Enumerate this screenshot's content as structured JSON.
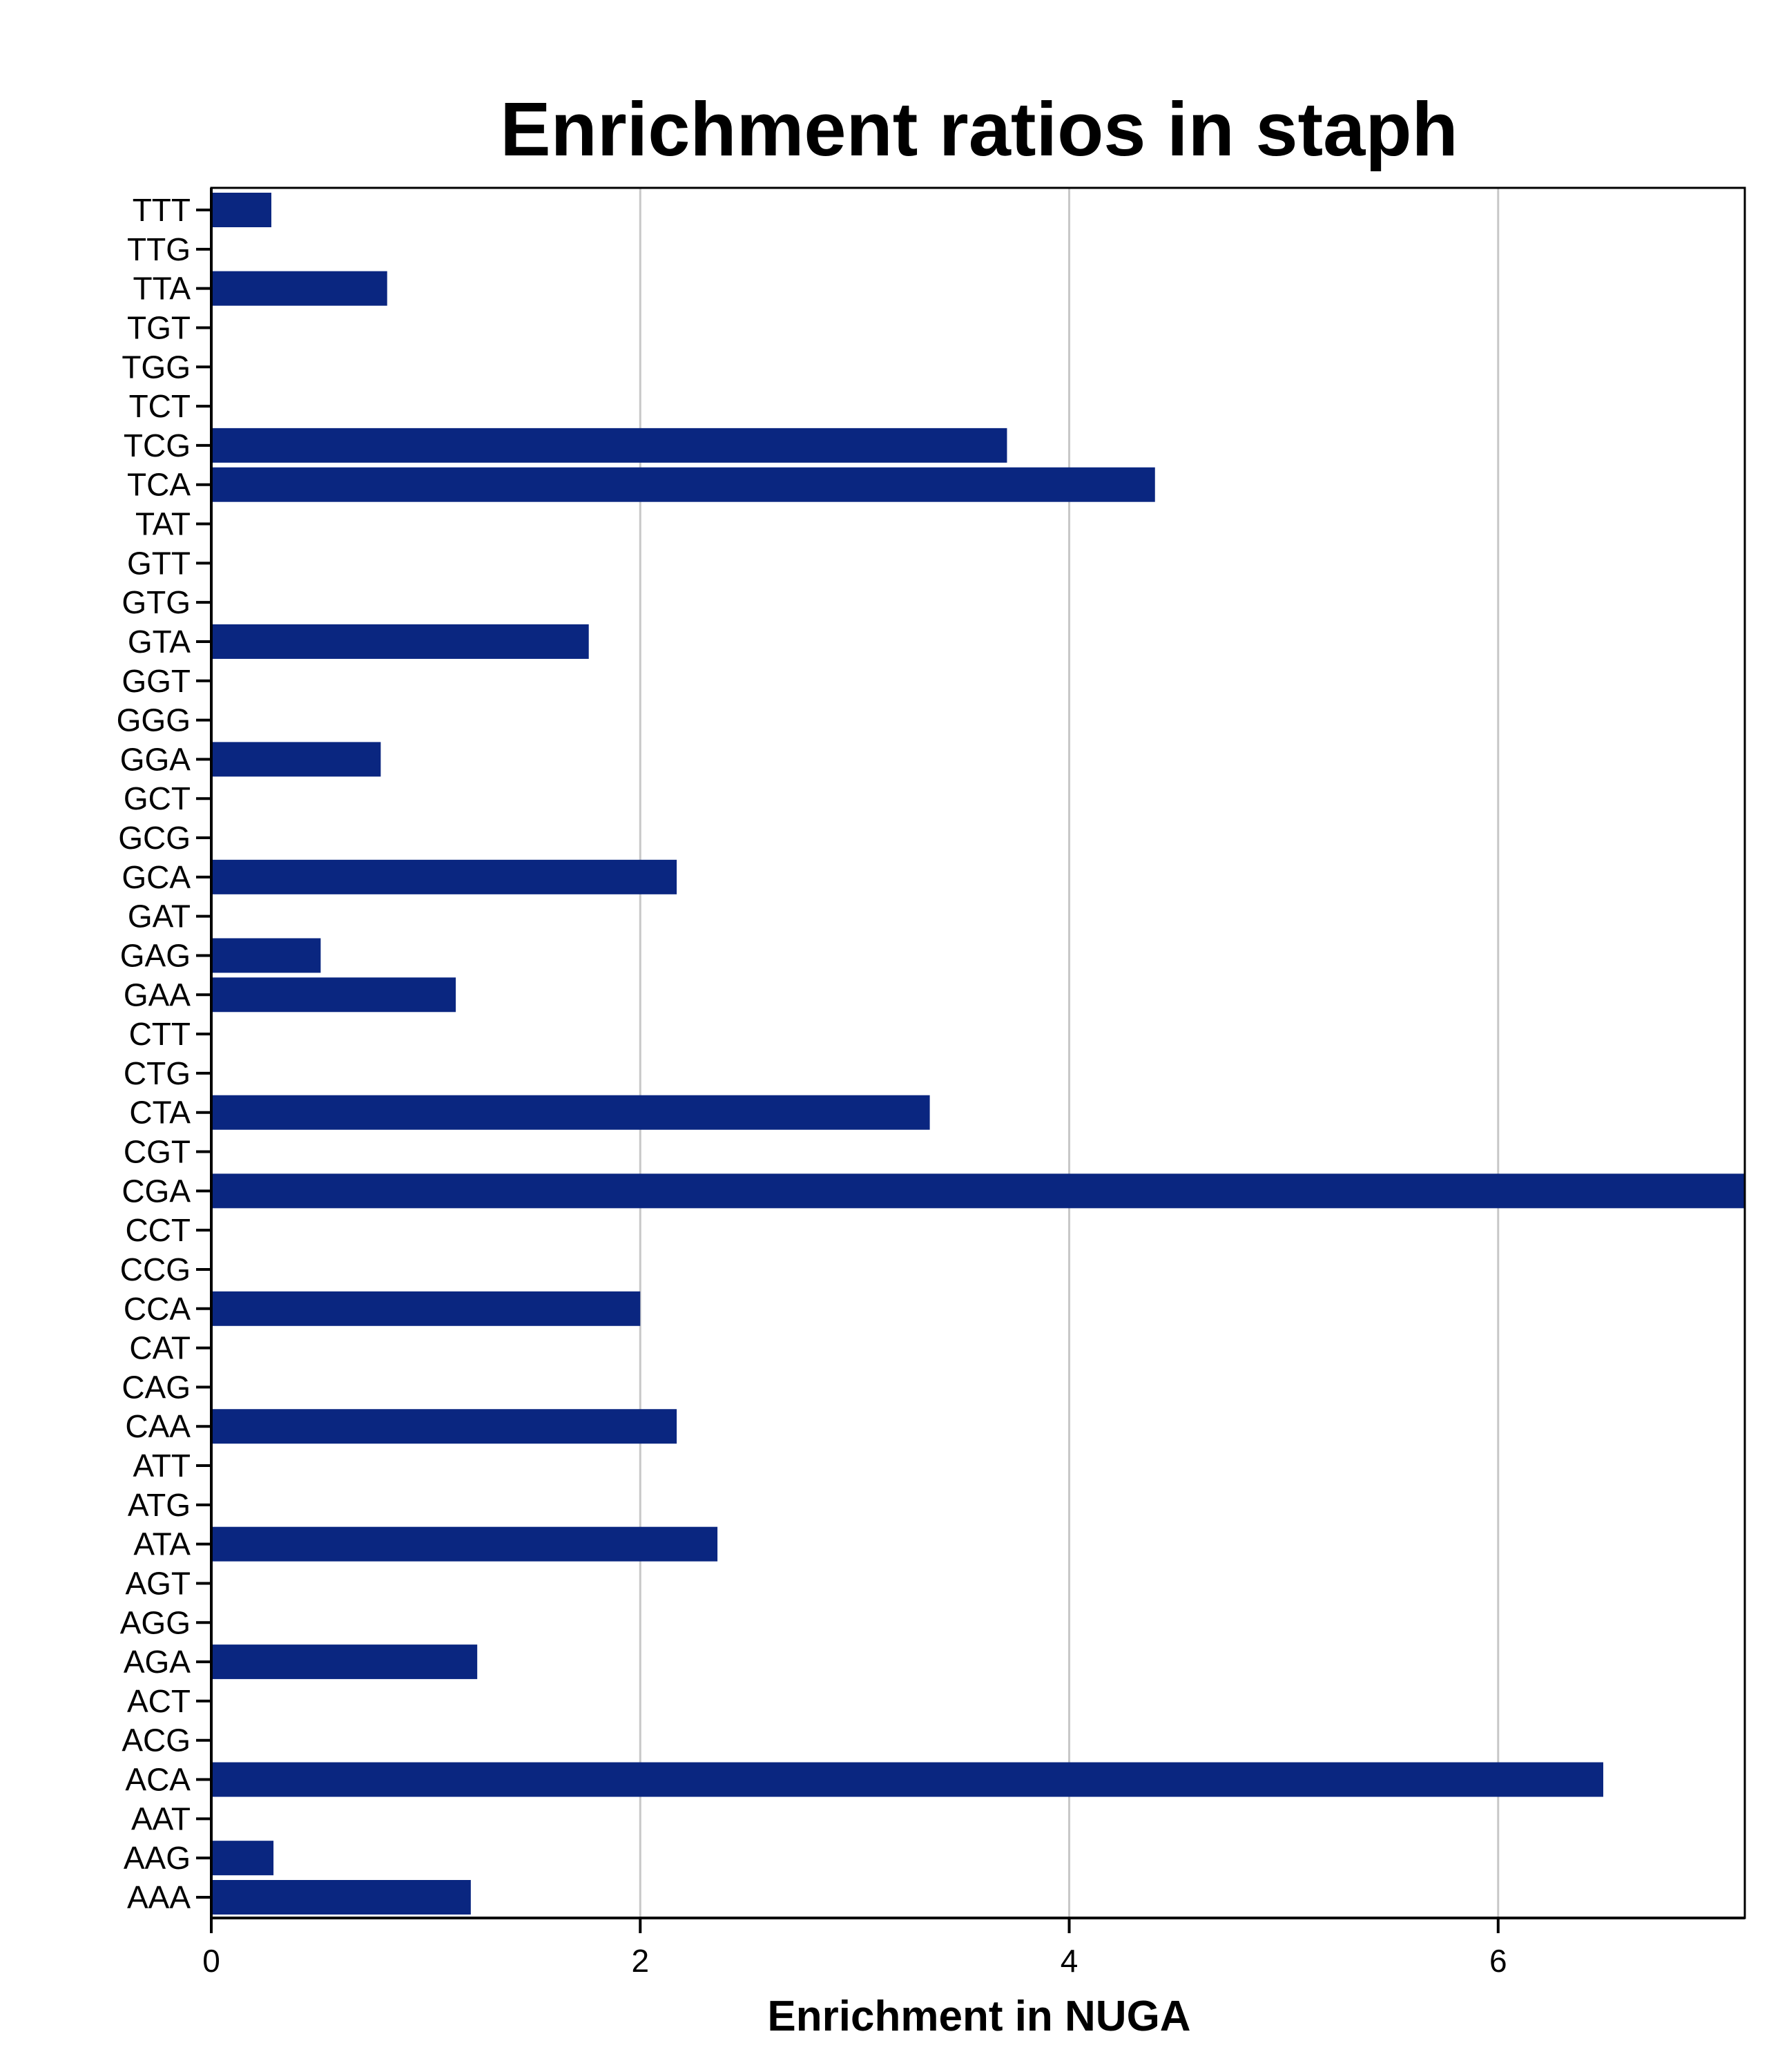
{
  "chart_data": {
    "type": "bar",
    "orientation": "horizontal",
    "title": "Enrichment ratios in staph",
    "xlabel": "Enrichment in NUGA",
    "ylabel": "",
    "xlim": [
      0,
      7.15
    ],
    "xticks": [
      0,
      2,
      4,
      6
    ],
    "grid": "vertical",
    "bar_color": "#0a2680",
    "categories": [
      "TTT",
      "TTG",
      "TTA",
      "TGT",
      "TGG",
      "TCT",
      "TCG",
      "TCA",
      "TAT",
      "GTT",
      "GTG",
      "GTA",
      "GGT",
      "GGG",
      "GGA",
      "GCT",
      "GCG",
      "GCA",
      "GAT",
      "GAG",
      "GAA",
      "CTT",
      "CTG",
      "CTA",
      "CGT",
      "CGA",
      "CCT",
      "CCG",
      "CCA",
      "CAT",
      "CAG",
      "CAA",
      "ATT",
      "ATG",
      "ATA",
      "AGT",
      "AGG",
      "AGA",
      "ACT",
      "ACG",
      "ACA",
      "AAT",
      "AAG",
      "AAA"
    ],
    "values": [
      0.28,
      0,
      0.82,
      0,
      0,
      0,
      3.71,
      4.4,
      0,
      0,
      0,
      1.76,
      0,
      0,
      0.79,
      0,
      0,
      2.17,
      0,
      0.51,
      1.14,
      0,
      0,
      3.35,
      0,
      7.15,
      0,
      0,
      2.0,
      0,
      0,
      2.17,
      0,
      0,
      2.36,
      0,
      0,
      1.24,
      0,
      0,
      6.49,
      0,
      0.29,
      1.21
    ]
  }
}
